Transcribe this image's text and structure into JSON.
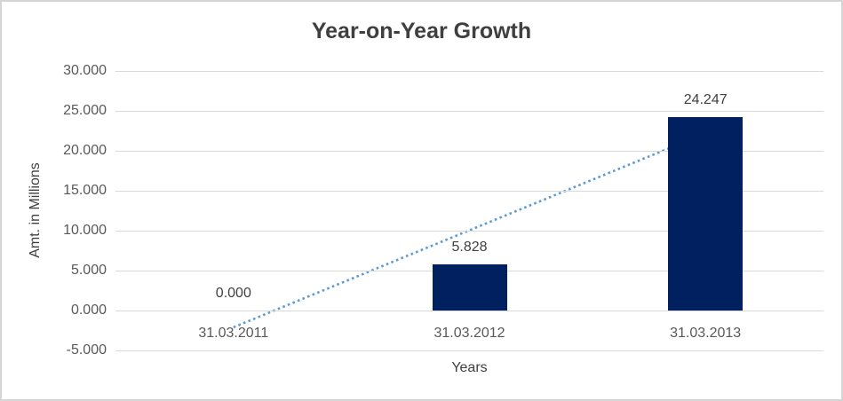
{
  "chart_data": {
    "type": "bar",
    "title": "Year-on-Year Growth",
    "xlabel": "Years",
    "ylabel": "Amt. in Millions",
    "categories": [
      "31.03.2011",
      "31.03.2012",
      "31.03.2013"
    ],
    "values": [
      0.0,
      5.828,
      24.247
    ],
    "data_labels": [
      "0.000",
      "5.828",
      "24.247"
    ],
    "y_tick_labels": [
      "30.000",
      "25.000",
      "20.000",
      "15.000",
      "10.000",
      "5.000",
      "0.000",
      "-5.000"
    ],
    "y_tick_values": [
      30,
      25,
      20,
      15,
      10,
      5,
      0,
      -5
    ],
    "ylim": [
      -5,
      30
    ],
    "grid": true,
    "legend": "none",
    "bar_color": "#012060",
    "gridline_color": "#d9d9d9",
    "title_color": "#3f3f3f",
    "tick_color": "#595959",
    "data_label_color": "#404040",
    "trendline": {
      "style": "dotted",
      "color": "#5b9bd5",
      "start_value": -2.1,
      "end_value": 22.2
    }
  }
}
